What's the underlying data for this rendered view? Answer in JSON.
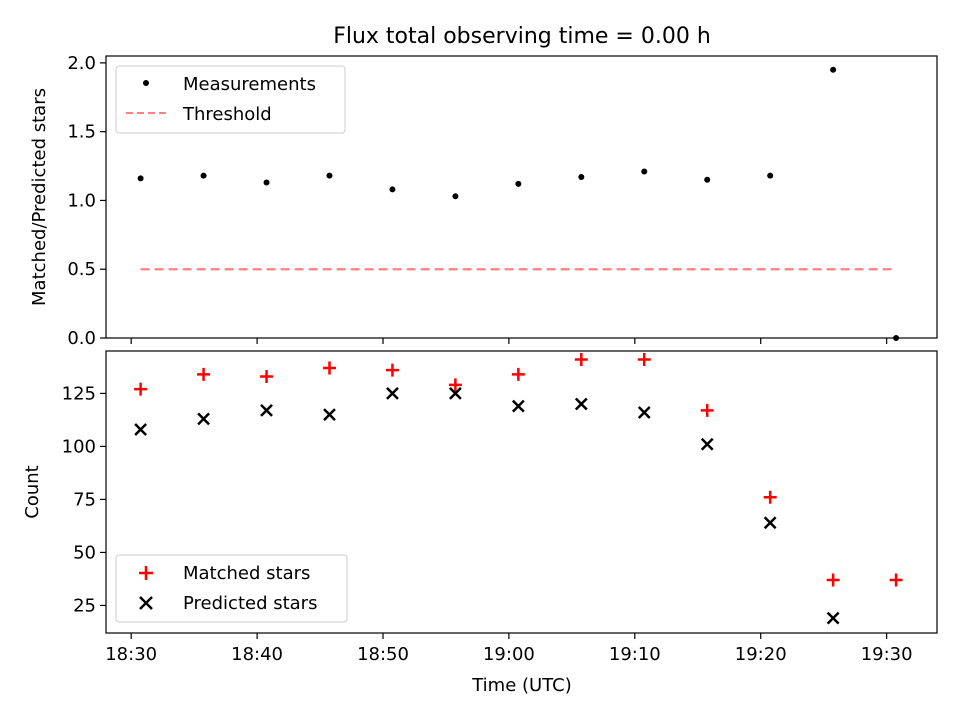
{
  "figure": {
    "title": "Flux total observing time = 0.00 h",
    "xlabel": "Time (UTC)"
  },
  "colors": {
    "measurement": "#000000",
    "threshold": "#ff8080",
    "matched": "#ff0000",
    "predicted": "#000000"
  },
  "chart_data": [
    {
      "type": "scatter",
      "panel": "top",
      "title": "Flux total observing time = 0.00 h",
      "xlabel": "",
      "ylabel": "Matched/Predicted stars",
      "xlim": [
        "18:28",
        "19:34"
      ],
      "ylim": [
        0,
        2.05
      ],
      "x_ticks": [
        "18:30",
        "18:40",
        "18:50",
        "19:00",
        "19:10",
        "19:20",
        "19:30"
      ],
      "y_ticks": [
        "0.0",
        "0.5",
        "1.0",
        "1.5",
        "2.0"
      ],
      "grid": false,
      "legend_position": "upper-left",
      "series": [
        {
          "name": "Measurements",
          "marker": "dot",
          "x": [
            "18:30:45",
            "18:35:45",
            "18:40:45",
            "18:45:45",
            "18:50:45",
            "18:55:45",
            "19:00:45",
            "19:05:45",
            "19:10:45",
            "19:15:45",
            "19:20:45",
            "19:25:45",
            "19:30:45"
          ],
          "y": [
            1.16,
            1.18,
            1.13,
            1.18,
            1.08,
            1.03,
            1.12,
            1.17,
            1.21,
            1.15,
            1.18,
            1.95,
            0.0
          ]
        },
        {
          "name": "Threshold",
          "marker": "dashed-line",
          "x": [
            "18:30:45",
            "19:30:45"
          ],
          "y": [
            0.5,
            0.5
          ]
        }
      ]
    },
    {
      "type": "scatter",
      "panel": "bottom",
      "xlabel": "Time (UTC)",
      "ylabel": "Count",
      "xlim": [
        "18:28",
        "19:34"
      ],
      "ylim": [
        12,
        145
      ],
      "x_ticks": [
        "18:30",
        "18:40",
        "18:50",
        "19:00",
        "19:10",
        "19:20",
        "19:30"
      ],
      "y_ticks": [
        "25",
        "50",
        "75",
        "100",
        "125"
      ],
      "grid": false,
      "legend_position": "lower-left",
      "series": [
        {
          "name": "Matched stars",
          "marker": "plus",
          "x": [
            "18:30:45",
            "18:35:45",
            "18:40:45",
            "18:45:45",
            "18:50:45",
            "18:55:45",
            "19:00:45",
            "19:05:45",
            "19:10:45",
            "19:15:45",
            "19:20:45",
            "19:25:45",
            "19:30:45"
          ],
          "y": [
            127,
            134,
            133,
            137,
            136,
            129,
            134,
            141,
            141,
            117,
            76,
            37,
            37
          ]
        },
        {
          "name": "Predicted stars",
          "marker": "x",
          "x": [
            "18:30:45",
            "18:35:45",
            "18:40:45",
            "18:45:45",
            "18:50:45",
            "18:55:45",
            "19:00:45",
            "19:05:45",
            "19:10:45",
            "19:15:45",
            "19:20:45",
            "19:25:45"
          ],
          "y": [
            108,
            113,
            117,
            115,
            125,
            125,
            119,
            120,
            116,
            101,
            64,
            19
          ]
        }
      ]
    }
  ]
}
